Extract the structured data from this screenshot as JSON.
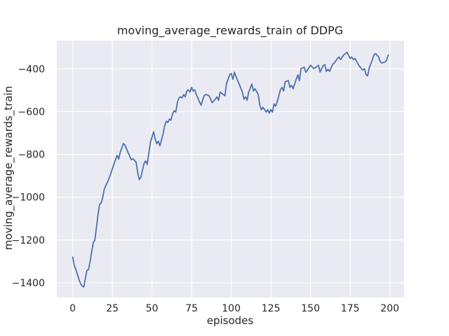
{
  "figure": {
    "background_color": "#ffffff",
    "axes_background_color": "#eaeaf2",
    "grid_color": "#ffffff",
    "text_color": "#262626",
    "line_color": "#4c72b0"
  },
  "chart_data": {
    "type": "line",
    "title": "moving_average_rewards_train of DDPG",
    "xlabel": "episodes",
    "ylabel": "moving_average_rewards_train",
    "xlim": [
      -10,
      209
    ],
    "ylim": [
      -1469,
      -268
    ],
    "grid": true,
    "legend_position": "none",
    "x_ticks": [
      0,
      25,
      50,
      75,
      100,
      125,
      150,
      175,
      200
    ],
    "x_tick_labels": [
      "0",
      "25",
      "50",
      "75",
      "100",
      "125",
      "150",
      "175",
      "200"
    ],
    "y_ticks": [
      -400,
      -600,
      -800,
      -1000,
      -1200,
      -1400
    ],
    "y_tick_labels": [
      "−400",
      "−600",
      "−800",
      "−1000",
      "−1200",
      "−1400"
    ],
    "series": [
      {
        "name": "moving_average_rewards_train",
        "color": "#4c72b0",
        "x": [
          0,
          1,
          2,
          3,
          4,
          5,
          6,
          7,
          8,
          9,
          10,
          11,
          12,
          13,
          14,
          15,
          16,
          17,
          18,
          19,
          20,
          22,
          24,
          26,
          28,
          29,
          30,
          32,
          33,
          35,
          37,
          38,
          40,
          41,
          42,
          43,
          45,
          46,
          47,
          49,
          51,
          52,
          53,
          54,
          55,
          57,
          58,
          59,
          60,
          61,
          62,
          63,
          64,
          65,
          66,
          67,
          68,
          69,
          70,
          71,
          72,
          73,
          74,
          75,
          76,
          77,
          78,
          80,
          81,
          82,
          83,
          84,
          86,
          88,
          90,
          91,
          92,
          93,
          95,
          96,
          97,
          99,
          100,
          101,
          102,
          104,
          105,
          107,
          108,
          109,
          110,
          111,
          113,
          114,
          115,
          117,
          118,
          119,
          120,
          122,
          123,
          124,
          125,
          126,
          127,
          128,
          129,
          131,
          132,
          133,
          134,
          136,
          137,
          138,
          139,
          141,
          142,
          143,
          144,
          146,
          147,
          149,
          150,
          152,
          154,
          155,
          156,
          158,
          159,
          160,
          161,
          162,
          164,
          165,
          167,
          168,
          169,
          170,
          171,
          173,
          175,
          176,
          177,
          178,
          180,
          181,
          183,
          184,
          185,
          186,
          187,
          189,
          190,
          191,
          193,
          194,
          195,
          197,
          198,
          199
        ],
        "y": [
          -1280,
          -1320,
          -1338,
          -1360,
          -1385,
          -1405,
          -1415,
          -1420,
          -1380,
          -1343,
          -1338,
          -1300,
          -1255,
          -1212,
          -1201,
          -1140,
          -1080,
          -1033,
          -1027,
          -1000,
          -960,
          -929,
          -891,
          -845,
          -804,
          -822,
          -790,
          -749,
          -757,
          -793,
          -825,
          -820,
          -836,
          -885,
          -918,
          -907,
          -842,
          -831,
          -847,
          -744,
          -694,
          -727,
          -750,
          -738,
          -760,
          -705,
          -667,
          -645,
          -651,
          -635,
          -640,
          -610,
          -596,
          -602,
          -558,
          -536,
          -531,
          -536,
          -520,
          -531,
          -504,
          -498,
          -509,
          -487,
          -504,
          -498,
          -520,
          -555,
          -570,
          -545,
          -525,
          -520,
          -526,
          -558,
          -542,
          -531,
          -547,
          -509,
          -520,
          -526,
          -470,
          -427,
          -422,
          -449,
          -416,
          -455,
          -471,
          -509,
          -542,
          -531,
          -547,
          -509,
          -471,
          -504,
          -493,
          -520,
          -569,
          -591,
          -580,
          -602,
          -591,
          -607,
          -591,
          -602,
          -564,
          -575,
          -553,
          -498,
          -487,
          -504,
          -460,
          -455,
          -487,
          -477,
          -493,
          -448,
          -428,
          -455,
          -399,
          -392,
          -416,
          -395,
          -383,
          -399,
          -390,
          -383,
          -415,
          -385,
          -380,
          -412,
          -402,
          -412,
          -378,
          -373,
          -351,
          -345,
          -357,
          -345,
          -334,
          -323,
          -351,
          -345,
          -357,
          -351,
          -378,
          -389,
          -406,
          -400,
          -427,
          -433,
          -395,
          -357,
          -334,
          -329,
          -345,
          -367,
          -373,
          -367,
          -361,
          -335
        ]
      }
    ]
  }
}
